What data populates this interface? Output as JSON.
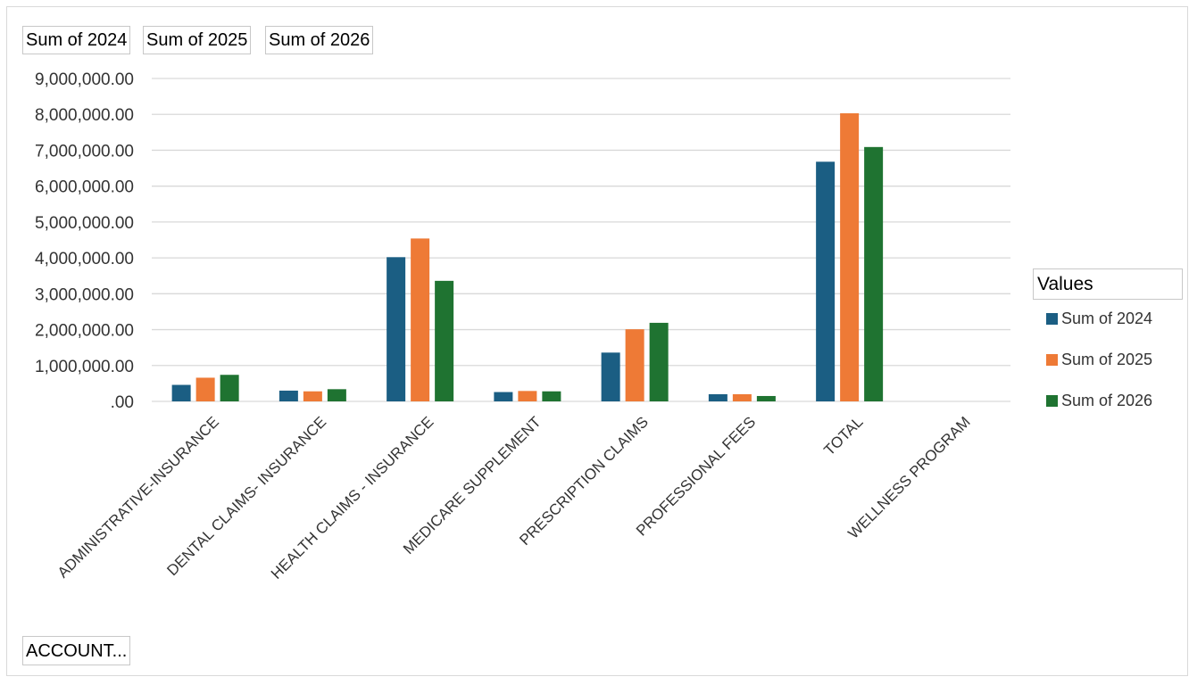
{
  "colors": {
    "series_2024": "#1b5e83",
    "series_2025": "#ee7a36",
    "series_2026": "#1f7331",
    "gridline": "#d9d9d9",
    "axis_text": "#333333"
  },
  "field_buttons": {
    "values": [
      "Sum of 2024",
      "Sum of 2025",
      "Sum of 2026"
    ],
    "axis_field": "ACCOUNT..."
  },
  "legend": {
    "title": "Values",
    "placement": "right",
    "items": [
      "Sum of 2024",
      "Sum of 2025",
      "Sum of 2026"
    ]
  },
  "chart_data": {
    "type": "bar",
    "categories": [
      "ADMINISTRATIVE-INSURANCE",
      "DENTAL CLAIMS- INSURANCE",
      "HEALTH CLAIMS - INSURANCE",
      "MEDICARE SUPPLEMENT",
      "PRESCRIPTION CLAIMS",
      "PROFESSIONAL FEES",
      "TOTAL",
      "WELLNESS PROGRAM"
    ],
    "series": [
      {
        "name": "Sum of 2024",
        "values": [
          460000,
          300000,
          4020000,
          260000,
          1360000,
          200000,
          6680000,
          0
        ]
      },
      {
        "name": "Sum of 2025",
        "values": [
          660000,
          280000,
          4540000,
          290000,
          2010000,
          200000,
          8030000,
          0
        ]
      },
      {
        "name": "Sum of 2026",
        "values": [
          740000,
          340000,
          3360000,
          280000,
          2190000,
          150000,
          7090000,
          0
        ]
      }
    ],
    "ylim": [
      0,
      9000000
    ],
    "yticks": [
      0,
      1000000,
      2000000,
      3000000,
      4000000,
      5000000,
      6000000,
      7000000,
      8000000,
      9000000
    ],
    "ytick_labels": [
      ".00",
      "1,000,000.00",
      "2,000,000.00",
      "3,000,000.00",
      "4,000,000.00",
      "5,000,000.00",
      "6,000,000.00",
      "7,000,000.00",
      "8,000,000.00",
      "9,000,000.00"
    ],
    "grid": true
  }
}
